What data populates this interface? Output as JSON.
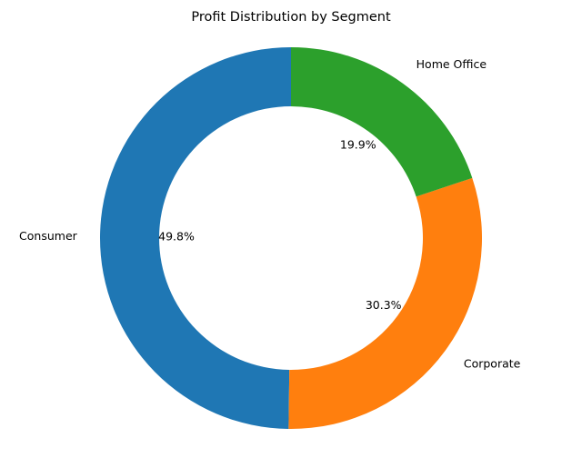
{
  "chart_data": {
    "type": "pie",
    "title": "Profit Distribution by Segment",
    "donut": true,
    "start_angle_deg": 90,
    "direction": "counterclockwise",
    "slices": [
      {
        "label": "Consumer",
        "value": 49.8,
        "pct_label": "49.8%",
        "color": "#1f77b4"
      },
      {
        "label": "Corporate",
        "value": 30.3,
        "pct_label": "30.3%",
        "color": "#ff7f0e"
      },
      {
        "label": "Home Office",
        "value": 19.9,
        "pct_label": "19.9%",
        "color": "#2ca02c"
      }
    ]
  }
}
